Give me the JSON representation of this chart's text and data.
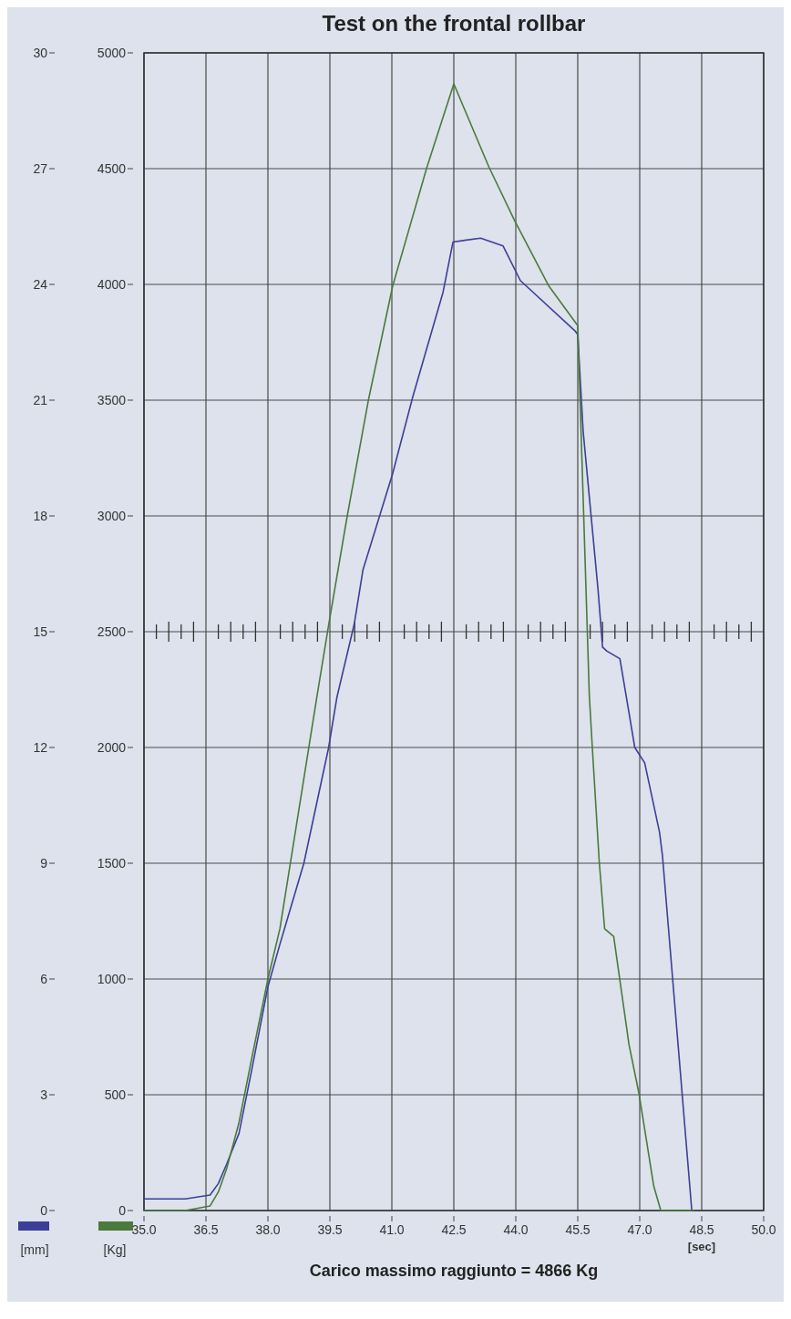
{
  "chart_data": {
    "type": "line",
    "title": "Test on the frontal rollbar",
    "xlabel": "[sec]",
    "ylabel": "[mm]",
    "y2label": "[Kg]",
    "annotations": [
      "Carico massimo raggiunto  = 4866 Kg"
    ],
    "xlim": [
      35,
      50
    ],
    "xticks": [
      {
        "value": 35,
        "label": "35.0"
      },
      36.5,
      {
        "value": 38,
        "label": "38.0"
      },
      39.5,
      {
        "value": 41,
        "label": "41.0"
      },
      42.5,
      {
        "value": 44,
        "label": "44.0"
      },
      45.5,
      {
        "value": 47,
        "label": "47.0"
      },
      48.5,
      {
        "value": 50,
        "label": "50.0"
      }
    ],
    "ylim": [
      0,
      30
    ],
    "yticks": [
      0,
      3,
      6,
      9,
      12,
      15,
      18,
      21,
      24,
      27,
      30
    ],
    "y2lim": [
      0,
      5000
    ],
    "y2ticks": [
      0,
      500,
      1000,
      1500,
      2000,
      2500,
      3000,
      3500,
      4000,
      4500,
      5000
    ],
    "grid": true,
    "series": [
      {
        "color": "#3c3f98",
        "x": [
          35,
          36,
          36.6,
          36.8,
          37,
          37.3,
          37.6,
          38,
          38.29,
          38.87,
          39.47,
          39.67,
          40.09,
          40.3,
          41.02,
          41.51,
          42.24,
          42.48,
          43.15,
          43.69,
          44.11,
          45.43,
          45.5,
          45.63,
          45.99,
          46.1,
          46.2,
          46.52,
          46.74,
          46.88,
          47.12,
          47.48,
          47.55,
          48.26
        ],
        "values": [
          0.3,
          0.3,
          0.4,
          0.7,
          1.2,
          2,
          3.6,
          5.8,
          6.9,
          9,
          12,
          13.3,
          15.2,
          16.6,
          19.1,
          21.1,
          23.8,
          25.1,
          25.2,
          25,
          24.1,
          22.8,
          22.7,
          20.2,
          16.1,
          14.6,
          14.5,
          14.3,
          12.9,
          12,
          11.6,
          9.8,
          9.2,
          0
        ]
      },
      {
        "color": "#4b7a3c",
        "axis": "y2",
        "x": [
          35,
          36,
          36.6,
          36.8,
          37,
          37.3,
          37.6,
          38,
          38.29,
          39.19,
          39.48,
          39.92,
          40.44,
          41.02,
          41.85,
          42.5,
          43.35,
          43.97,
          44.8,
          45.5,
          45.78,
          45.85,
          46.02,
          46.15,
          46.37,
          46.74,
          46.98,
          47.34,
          47.51,
          48.3
        ],
        "values": [
          0,
          0,
          20,
          80,
          180,
          380,
          650,
          1000,
          1217,
          2224,
          2540,
          3000,
          3507,
          3993,
          4507,
          4866,
          4507,
          4276,
          3993,
          3822,
          2224,
          2007,
          1507,
          1217,
          1184,
          717,
          507,
          105,
          0,
          0
        ]
      }
    ]
  }
}
